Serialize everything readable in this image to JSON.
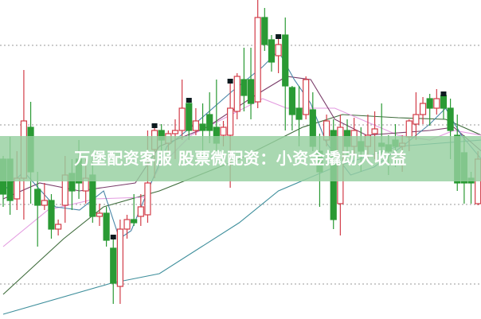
{
  "chart_data": {
    "type": "candlestick",
    "title": "",
    "xlabel": "",
    "ylabel": "",
    "ylim": [
      0,
      100
    ],
    "grid": "horizontal dotted",
    "gridlines": [
      85.75,
      60.75,
      35.75,
      10.75
    ],
    "colors": {
      "up": "#d23c48",
      "down": "#2a9a34",
      "grid": "#999999"
    },
    "candles": [
      [
        50,
        51,
        35,
        39
      ],
      [
        50,
        57,
        32.5,
        37
      ],
      [
        37.5,
        52.5,
        34,
        44
      ],
      [
        44,
        78,
        31,
        62
      ],
      [
        60,
        68,
        36,
        46
      ],
      [
        40.5,
        46,
        22.5,
        35.5
      ],
      [
        35.5,
        42.5,
        34,
        37
      ],
      [
        37,
        39,
        25,
        28
      ],
      [
        28,
        31,
        26,
        29.5
      ],
      [
        35.5,
        51,
        30,
        45
      ],
      [
        45.5,
        50,
        34,
        40
      ],
      [
        50,
        56,
        37.5,
        42.5
      ],
      [
        40,
        50,
        36,
        44
      ],
      [
        45,
        51,
        30,
        32
      ],
      [
        32,
        36,
        29,
        33
      ],
      [
        33,
        35,
        22.5,
        24.5
      ],
      [
        22,
        26,
        4.5,
        11
      ],
      [
        10,
        31,
        4.5,
        28
      ],
      [
        28,
        32.5,
        25,
        31
      ],
      [
        31,
        39,
        29,
        30
      ],
      [
        32,
        39,
        29,
        35
      ],
      [
        32.5,
        59,
        30,
        42.5
      ],
      [
        53,
        61,
        44,
        59
      ],
      [
        59,
        61,
        49,
        56
      ],
      [
        55,
        59,
        52.5,
        58
      ],
      [
        58,
        62.5,
        50,
        59
      ],
      [
        59,
        75,
        56,
        66
      ],
      [
        67.5,
        69,
        56,
        59
      ],
      [
        59,
        66,
        57.5,
        62
      ],
      [
        61,
        67.5,
        50,
        59
      ],
      [
        64,
        71,
        55,
        59
      ],
      [
        60,
        75,
        52.5,
        55
      ],
      [
        57.5,
        62,
        54,
        60
      ],
      [
        57.5,
        75,
        41,
        66
      ],
      [
        65,
        77,
        62.5,
        76
      ],
      [
        75,
        85,
        65,
        70
      ],
      [
        75,
        85,
        62.5,
        67.5
      ],
      [
        68,
        100,
        66,
        94.5
      ],
      [
        94.5,
        97.5,
        84,
        86
      ],
      [
        87.5,
        89,
        77.5,
        80.5
      ],
      [
        82.5,
        89,
        77,
        86
      ],
      [
        89,
        94.5,
        59,
        73
      ],
      [
        72.5,
        73,
        59,
        64
      ],
      [
        66,
        73,
        54,
        62.5
      ],
      [
        64,
        76,
        62.5,
        75
      ],
      [
        65.5,
        71,
        52.5,
        54
      ],
      [
        52.5,
        58,
        35,
        46
      ],
      [
        56,
        64,
        54,
        62
      ],
      [
        59,
        62.5,
        28,
        31
      ],
      [
        36,
        64,
        26,
        60
      ],
      [
        59,
        62.5,
        50,
        54
      ],
      [
        54,
        63,
        51,
        59
      ],
      [
        55.5,
        60,
        46,
        52.5
      ],
      [
        54,
        64,
        50,
        57.5
      ],
      [
        58,
        65,
        50,
        59.5
      ],
      [
        55,
        67.5,
        50,
        54
      ],
      [
        54.5,
        57.5,
        45,
        52.5
      ],
      [
        56,
        61,
        47.5,
        54
      ],
      [
        54,
        57.5,
        46,
        55
      ],
      [
        57,
        62.5,
        52.5,
        62
      ],
      [
        61,
        71,
        56,
        64
      ],
      [
        64,
        69.5,
        61,
        67.5
      ],
      [
        69,
        70.5,
        60.5,
        66
      ],
      [
        66,
        72,
        64,
        69
      ],
      [
        70,
        71,
        62.5,
        66
      ],
      [
        66,
        69,
        50,
        59
      ],
      [
        57.5,
        64,
        40,
        42.5
      ],
      [
        52,
        57.5,
        36,
        42.5
      ],
      [
        44,
        46,
        36,
        42.5
      ],
      [
        36,
        52.5,
        35.5,
        50
      ]
    ],
    "candle_fields": [
      "open",
      "high",
      "low",
      "close"
    ],
    "markers": [
      16,
      22,
      27,
      33,
      40,
      64
    ],
    "lines": [
      {
        "color": "#3f8f9c",
        "points": [
          [
            0,
            1.25
          ],
          [
            15.7,
            11
          ],
          [
            22.7,
            14
          ],
          [
            34.3,
            30
          ],
          [
            40,
            40
          ],
          [
            48.2,
            47.5
          ],
          [
            57.4,
            54
          ],
          [
            69.5,
            56
          ]
        ]
      },
      {
        "color": "#3d6b3a",
        "points": [
          [
            0,
            7.5
          ],
          [
            8.8,
            25
          ],
          [
            14.6,
            35
          ],
          [
            22.7,
            40
          ],
          [
            34.3,
            50
          ],
          [
            43.5,
            60
          ],
          [
            49.3,
            64
          ],
          [
            57.4,
            63
          ],
          [
            64.3,
            62.5
          ],
          [
            69.5,
            57.5
          ]
        ]
      },
      {
        "color": "#e39be0",
        "points": [
          [
            0,
            22.5
          ],
          [
            6.5,
            34
          ],
          [
            13.4,
            37.5
          ],
          [
            20.4,
            38
          ],
          [
            22.7,
            47.5
          ],
          [
            27.3,
            57.5
          ],
          [
            37.7,
            69
          ],
          [
            41.2,
            66
          ],
          [
            48.2,
            66
          ],
          [
            57.4,
            57.5
          ],
          [
            62,
            56
          ],
          [
            65.5,
            59
          ],
          [
            69.5,
            57.5
          ]
        ]
      },
      {
        "color": "#7a3d6a",
        "points": [
          [
            0,
            37.5
          ],
          [
            5.3,
            42.5
          ],
          [
            11.1,
            40
          ],
          [
            19.2,
            42.5
          ],
          [
            22.7,
            54
          ],
          [
            29.6,
            60
          ],
          [
            36.6,
            70
          ],
          [
            41.2,
            76
          ],
          [
            44.7,
            75
          ],
          [
            48.2,
            62.5
          ],
          [
            52.8,
            57.5
          ],
          [
            62,
            59
          ],
          [
            65.5,
            60
          ],
          [
            69.5,
            52.5
          ]
        ]
      },
      {
        "color": "#4a86a8",
        "points": [
          [
            0,
            40
          ],
          [
            3,
            46
          ],
          [
            7.6,
            35
          ],
          [
            11.1,
            34
          ],
          [
            14.6,
            40
          ],
          [
            16.9,
            25
          ],
          [
            18.6,
            27.5
          ],
          [
            21.5,
            42.5
          ],
          [
            23.8,
            54
          ],
          [
            27.3,
            60
          ],
          [
            33.1,
            71
          ],
          [
            37.7,
            79
          ],
          [
            40,
            84
          ],
          [
            42.3,
            75
          ],
          [
            44.7,
            67.5
          ],
          [
            47,
            55
          ],
          [
            50.5,
            45
          ],
          [
            53.9,
            47.5
          ],
          [
            58.6,
            55
          ],
          [
            62,
            61
          ],
          [
            64.3,
            66
          ],
          [
            66.6,
            57.5
          ],
          [
            69.5,
            50
          ]
        ]
      }
    ]
  },
  "banner": {
    "text": "万堡配资客服 股票微配资：小资金撬动大收益"
  }
}
